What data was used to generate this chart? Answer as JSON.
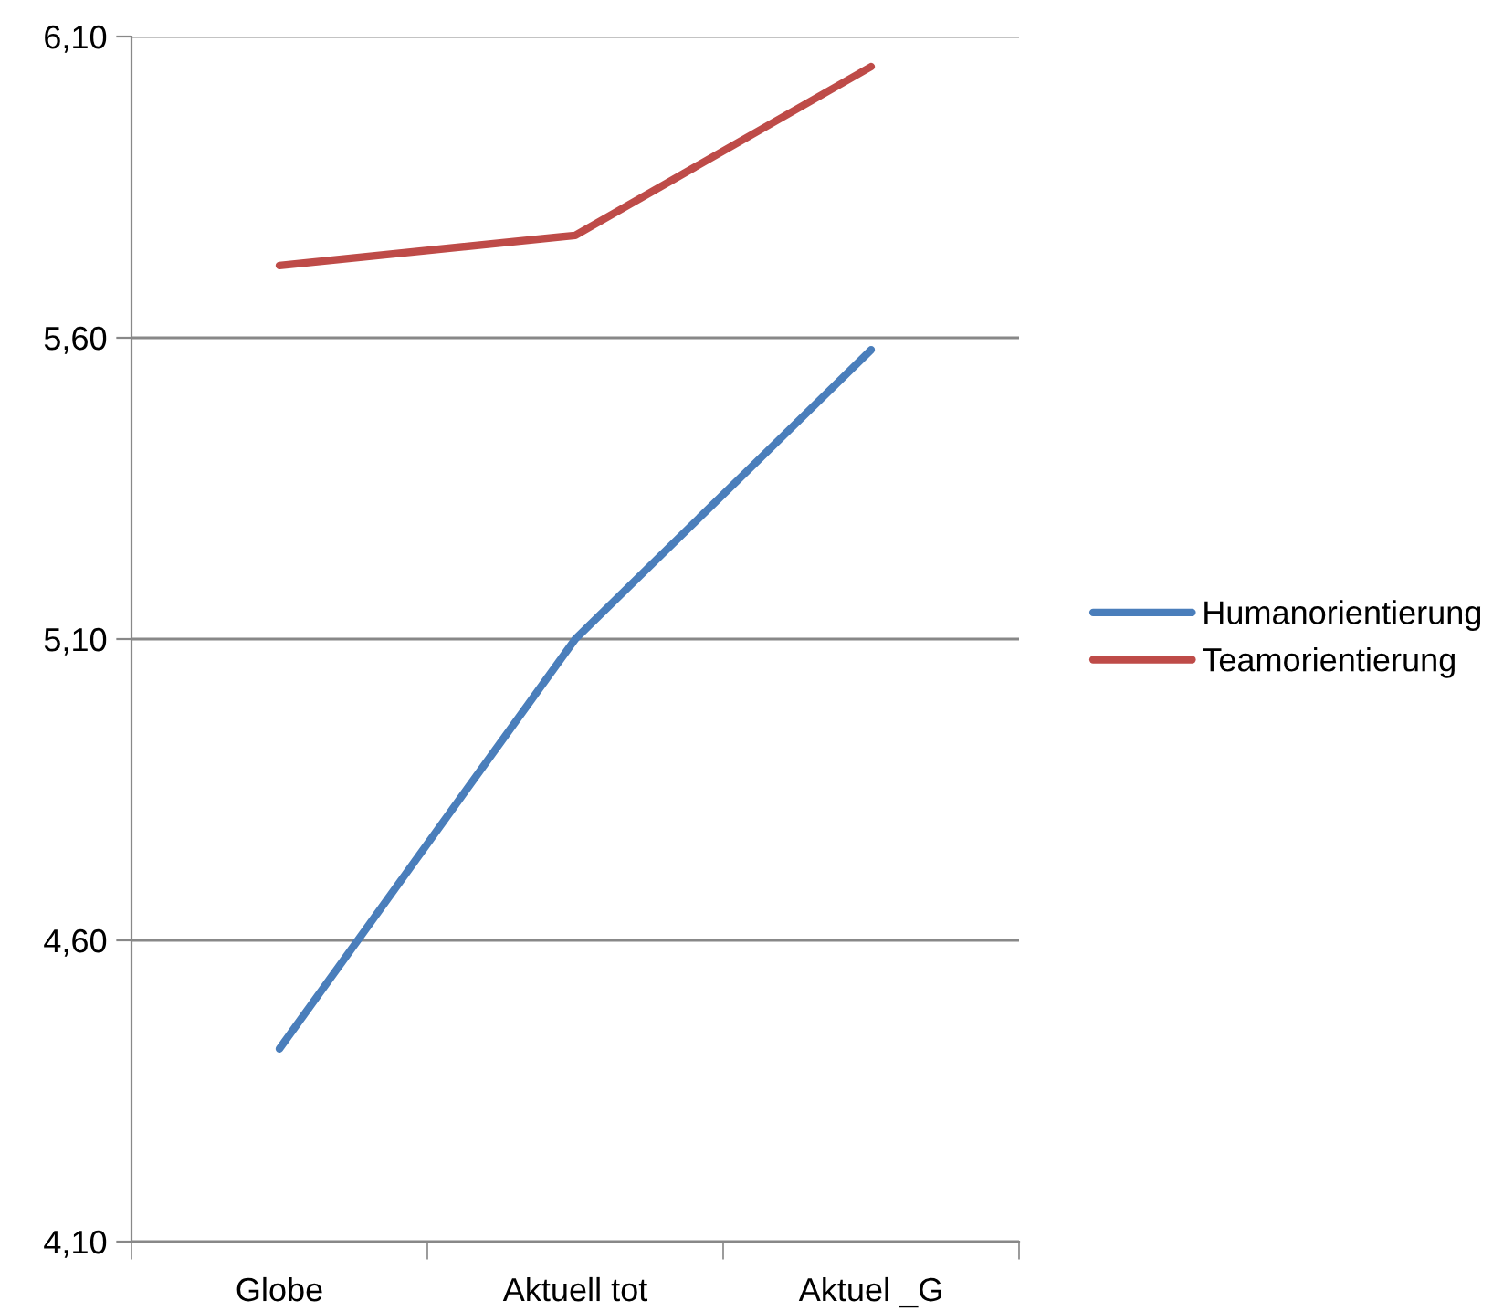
{
  "chart_data": {
    "type": "line",
    "categories": [
      "Globe",
      "Aktuell tot",
      "Aktuel _G"
    ],
    "series": [
      {
        "name": "Humanorientierung",
        "color": "#4a7ebb",
        "values": [
          4.42,
          5.1,
          5.58
        ]
      },
      {
        "name": "Teamorientierung",
        "color": "#be4b48",
        "values": [
          5.72,
          5.77,
          6.05
        ]
      }
    ],
    "ylim": [
      4.1,
      6.1
    ],
    "yticks": [
      {
        "value": 4.1,
        "label": "4,10"
      },
      {
        "value": 4.6,
        "label": "4,60"
      },
      {
        "value": 5.1,
        "label": "5,10"
      },
      {
        "value": 5.6,
        "label": "5,60"
      },
      {
        "value": 6.1,
        "label": "6,10"
      }
    ],
    "grid": "y",
    "legend": "right",
    "marker": "none",
    "line_style": "solid"
  }
}
